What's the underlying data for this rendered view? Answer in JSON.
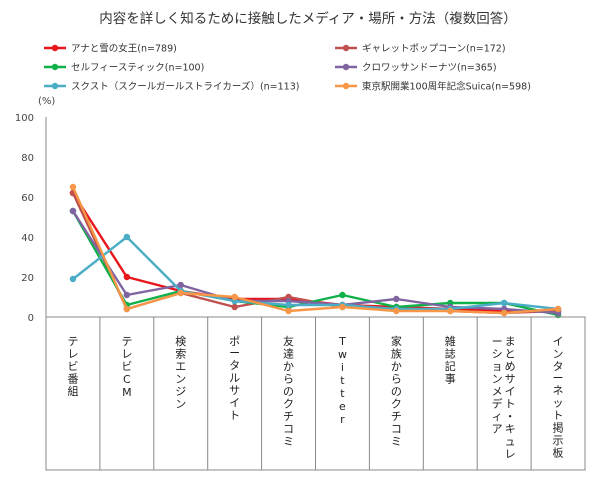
{
  "chart_data": {
    "type": "line",
    "title": "内容を詳しく知るために接触したメディア・場所・方法（複数回答）",
    "ylabel": "(%)",
    "ylim": [
      0,
      100
    ],
    "yticks": [
      0,
      20,
      40,
      60,
      80,
      100
    ],
    "grid": false,
    "legend_position": "top",
    "categories": [
      "テレビ番組",
      "テレビCM",
      "検索エンジン",
      "ポータルサイト",
      "友達からのクチコミ",
      "Twitter",
      "家族からのクチコミ",
      "雑誌記事",
      "まとめサイト・キュレーションメディア",
      "インターネット掲示板"
    ],
    "category_lines": [
      [
        "テレビ番組"
      ],
      [
        "テレビCM"
      ],
      [
        "検索エンジン"
      ],
      [
        "ポータルサイト"
      ],
      [
        "友達からのクチコミ"
      ],
      [
        "Twitter"
      ],
      [
        "家族からのクチコミ"
      ],
      [
        "雑誌記事"
      ],
      [
        "まとめサイト・キュレ",
        "ーションメディア"
      ],
      [
        "インターネット掲示板"
      ]
    ],
    "series": [
      {
        "name": "アナと雪の女王(n=789)",
        "color": "#e8151b",
        "values": [
          62,
          20,
          13,
          9,
          9,
          6,
          5,
          4,
          3,
          3
        ]
      },
      {
        "name": "ギャレットポップコーン(n=172)",
        "color": "#c0504d",
        "values": [
          62,
          4,
          12,
          5,
          10,
          5,
          4,
          3,
          2,
          3
        ]
      },
      {
        "name": "セルフィースティック(n=100)",
        "color": "#10b04a",
        "values": [
          53,
          6,
          13,
          8,
          5,
          11,
          5,
          7,
          7,
          1
        ]
      },
      {
        "name": "クロワッサンドーナツ(n=365)",
        "color": "#8064a2",
        "values": [
          53,
          11,
          16,
          8,
          8,
          6,
          9,
          5,
          4,
          2
        ]
      },
      {
        "name": "スクスト（スクールガールストライカーズ）(n=113)",
        "color": "#4bacc6",
        "values": [
          19,
          40,
          13,
          8,
          6,
          6,
          4,
          4,
          7,
          4
        ]
      },
      {
        "name": "東京駅開業100周年記念Suica(n=598)",
        "color": "#f79646",
        "values": [
          65,
          4,
          12,
          10,
          3,
          5,
          3,
          3,
          2,
          4
        ]
      }
    ]
  }
}
